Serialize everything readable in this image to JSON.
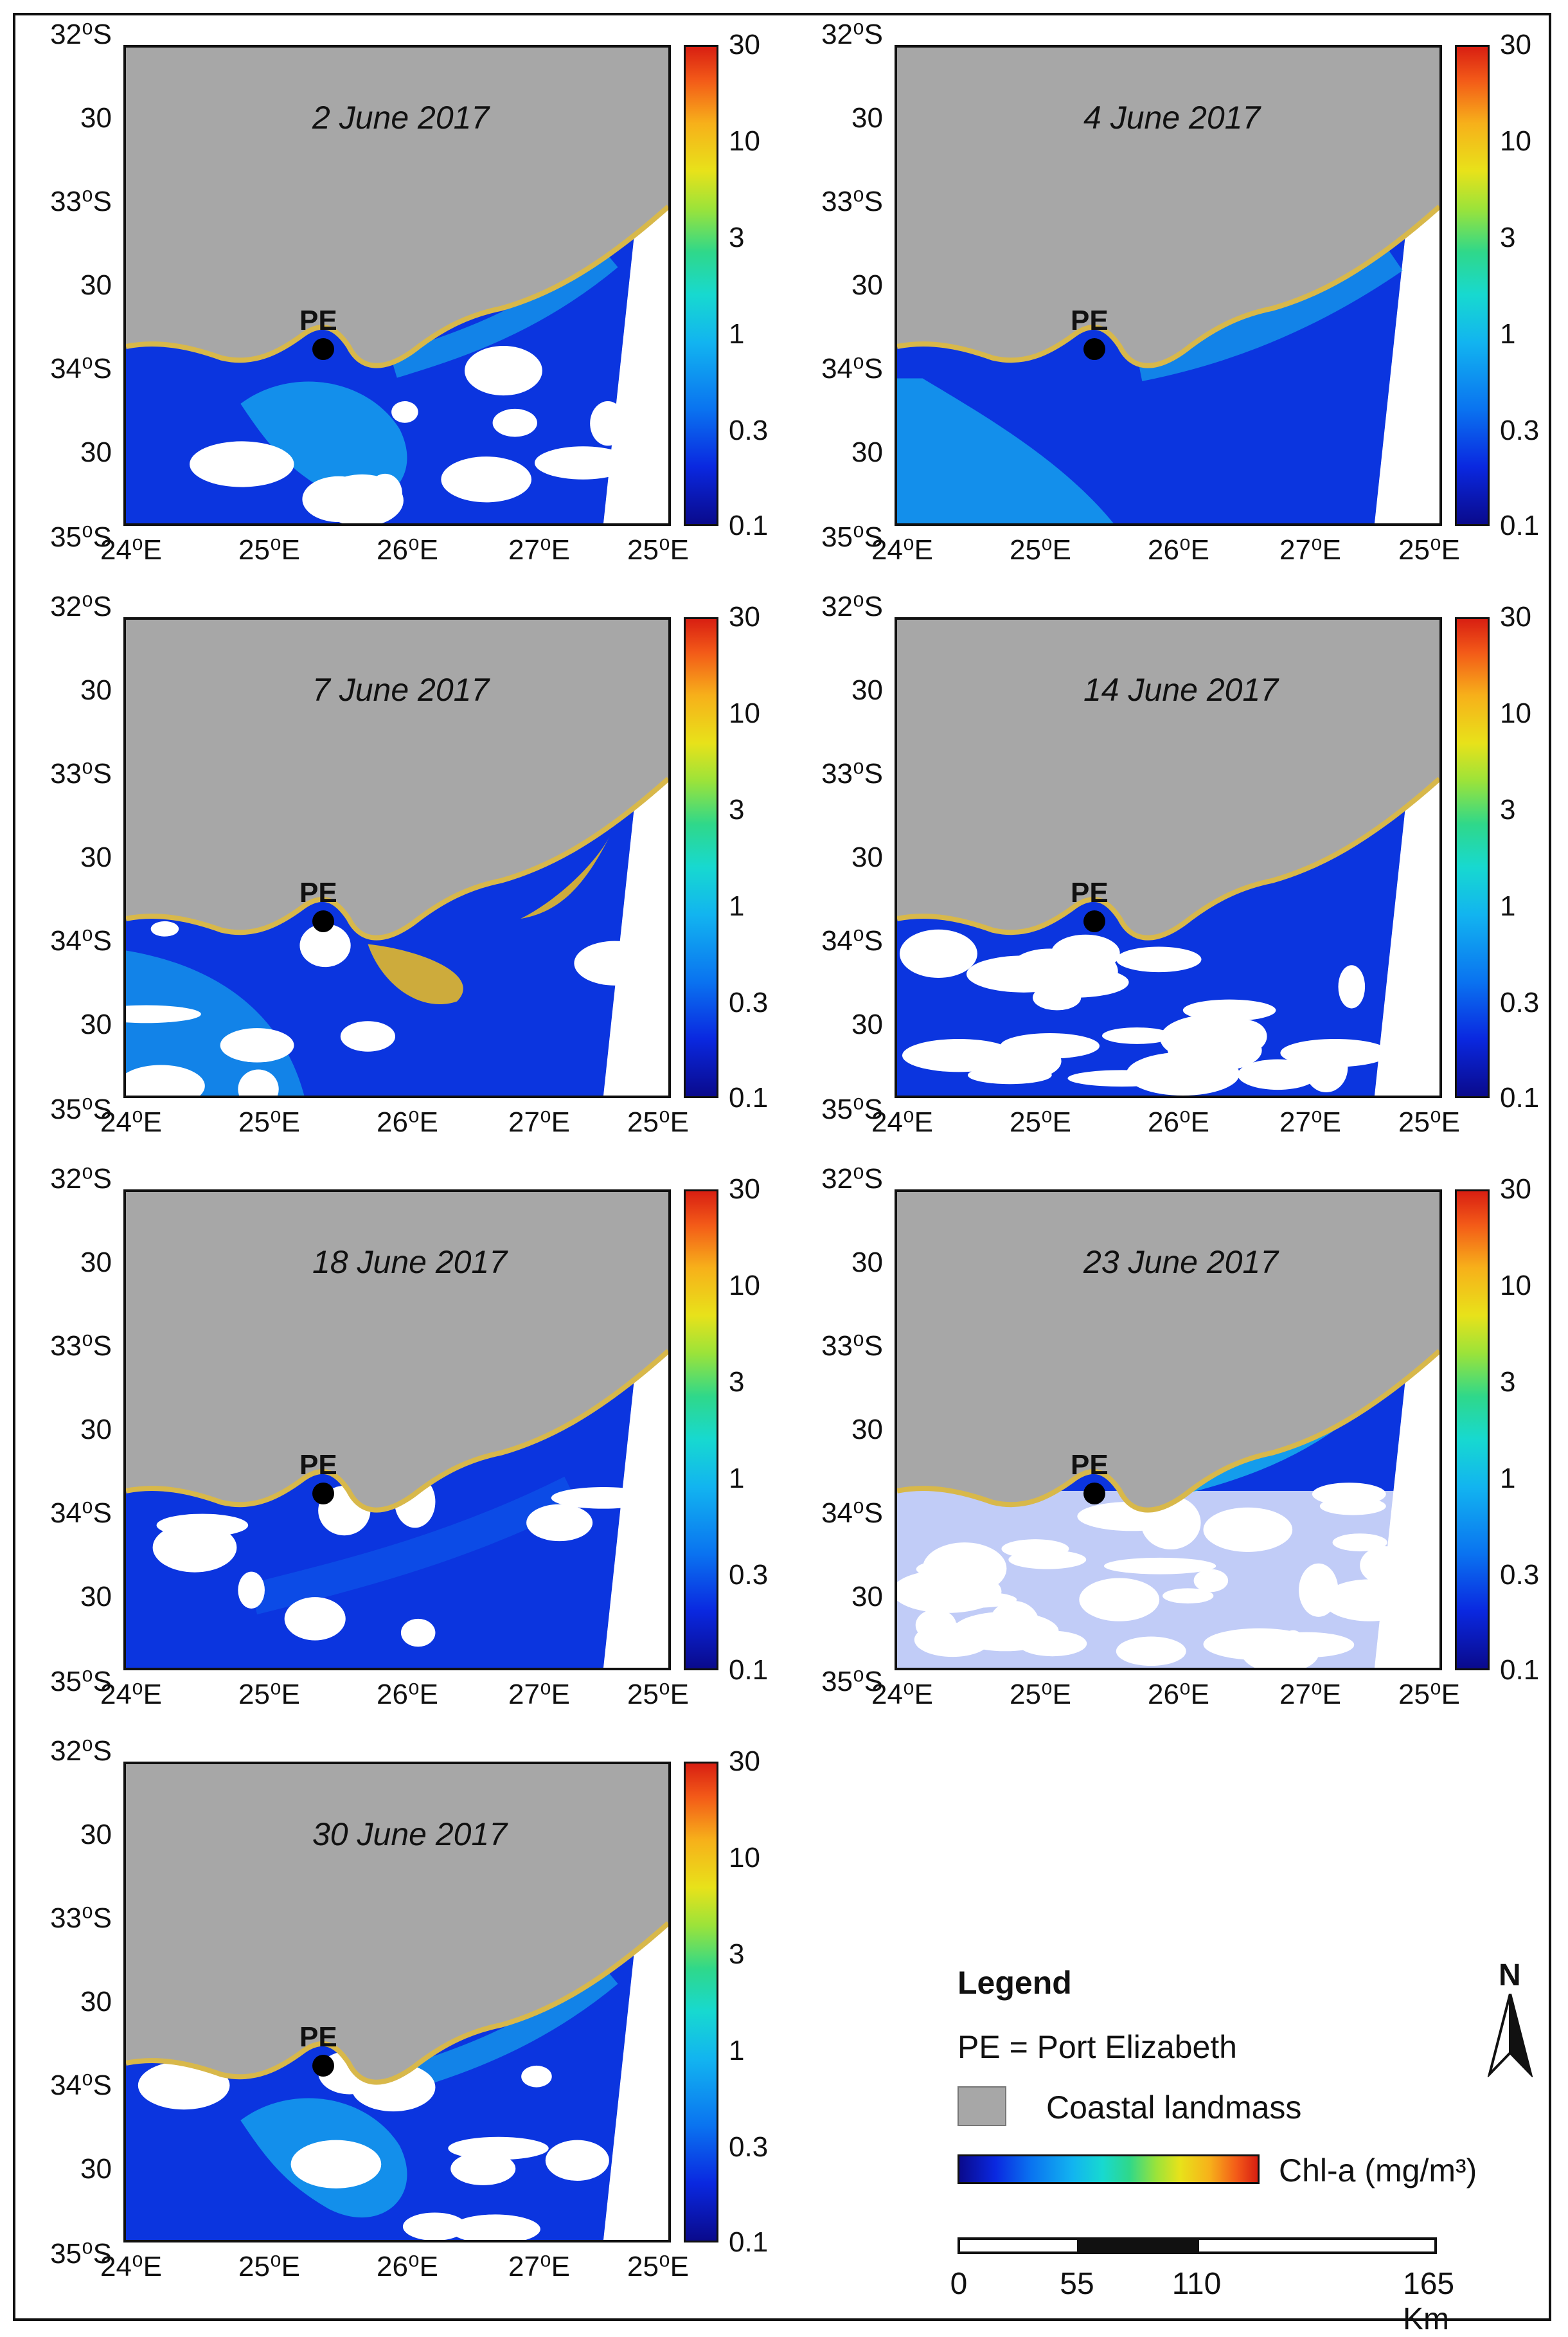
{
  "panels": [
    {
      "date": "2 June 2017",
      "variant": "bloom"
    },
    {
      "date": "4 June 2017",
      "variant": "clear"
    },
    {
      "date": "7 June 2017",
      "variant": "high"
    },
    {
      "date": "14 June 2017",
      "variant": "cloudy"
    },
    {
      "date": "18 June 2017",
      "variant": "clear2"
    },
    {
      "date": "23 June 2017",
      "variant": "very-cloudy"
    },
    {
      "date": "30 June 2017",
      "variant": "bloom"
    }
  ],
  "axes": {
    "lat_labels": [
      "32⁰S",
      "30",
      "33⁰S",
      "30",
      "34⁰S",
      "30",
      "35⁰S"
    ],
    "lon_labels": [
      "24⁰E",
      "25⁰E",
      "26⁰E",
      "27⁰E",
      "25⁰E"
    ]
  },
  "colorbar": {
    "ticks": [
      "30",
      "10",
      "3",
      "1",
      "0.3",
      "0.1"
    ],
    "colors": [
      "#0a0a8c",
      "#0a28e0",
      "#0a73f0",
      "#12b4f0",
      "#17d9d0",
      "#2fd88a",
      "#9be33a",
      "#e8e21a",
      "#f7b01a",
      "#f35a18",
      "#d81f12"
    ]
  },
  "station": {
    "label": "PE"
  },
  "legend": {
    "title": "Legend",
    "pe_text": "PE = Port Elizabeth",
    "land_text": "Coastal landmass",
    "chl_text": "Chl-a (mg/m³)",
    "north_label": "N",
    "scale_ticks": [
      "0",
      "55",
      "110",
      "165 Km"
    ]
  },
  "colors": {
    "land": "#a7a7a7",
    "coast": "#d8b84a",
    "ocean_deep": "#0a1ed8",
    "ocean_mid": "#0e62ee",
    "ocean_light": "#17b7ef",
    "cloud": "#ffffff",
    "high": "#f0c020"
  }
}
